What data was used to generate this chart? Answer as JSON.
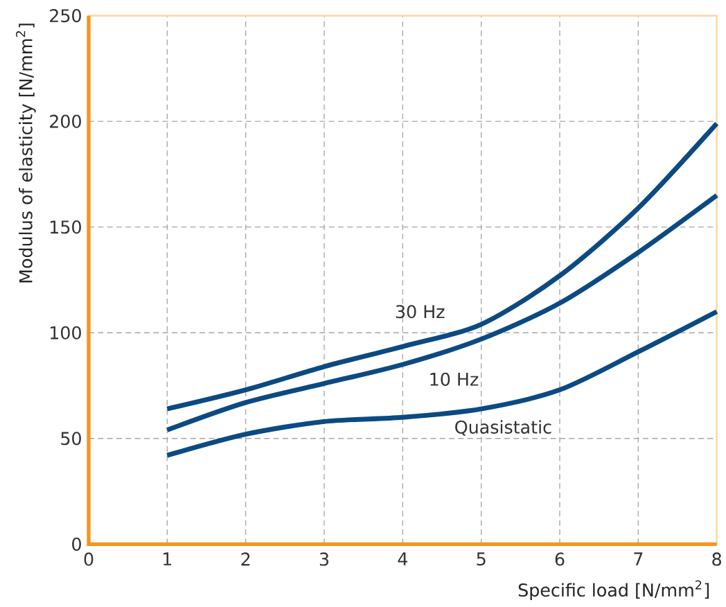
{
  "chart_data": {
    "type": "line",
    "xlabel": "Specific load [N/mm$^{2}$]",
    "ylabel": "Modulus of elasticity [N/mm$^{2}$]",
    "x": [
      1,
      2,
      3,
      4,
      5,
      6,
      7,
      8
    ],
    "series": [
      {
        "name": "30 Hz",
        "color": "#0b4a82",
        "values": [
          64,
          73,
          84,
          93.5,
          104,
          127,
          159,
          199
        ]
      },
      {
        "name": "10 Hz",
        "color": "#0b4a82",
        "values": [
          54,
          67,
          76,
          85,
          97,
          114,
          138,
          165
        ]
      },
      {
        "name": "Quasistatic",
        "color": "#0b4a82",
        "values": [
          42,
          52,
          58,
          60,
          64,
          73,
          91,
          110
        ]
      }
    ],
    "xlim": [
      0,
      8
    ],
    "ylim": [
      0,
      250
    ],
    "xticks": [
      0,
      1,
      2,
      3,
      4,
      5,
      6,
      7,
      8
    ],
    "yticks": [
      0,
      50,
      100,
      150,
      200,
      250
    ],
    "grid": true,
    "legend": false,
    "marker": "none",
    "line_style": "solid"
  }
}
